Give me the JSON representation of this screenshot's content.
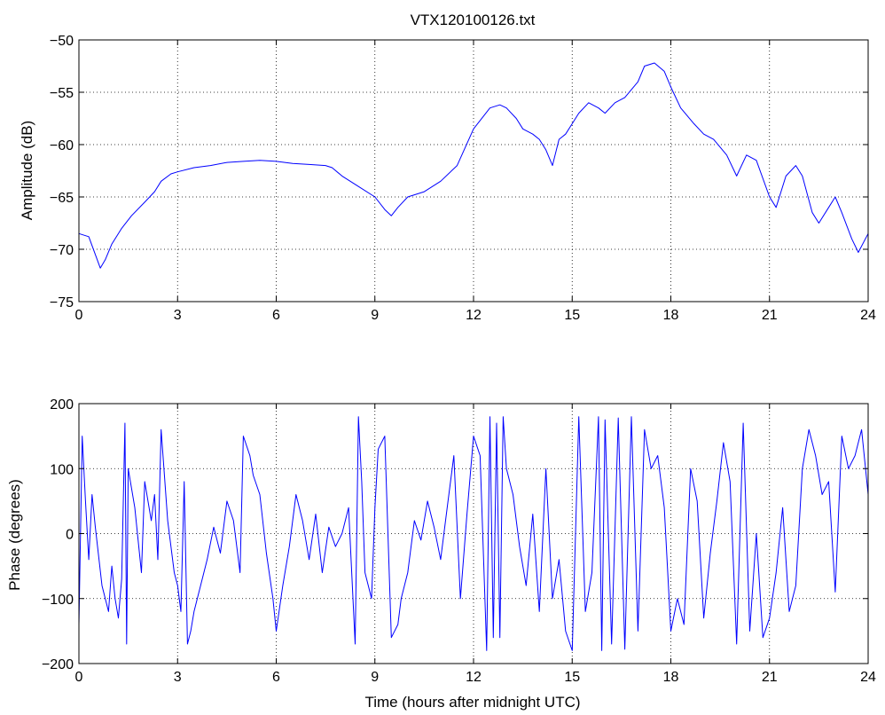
{
  "colors": {
    "series": "#0000ff",
    "axes": "#000000",
    "grid": "#000000",
    "background": "#ffffff"
  },
  "chart_data": [
    {
      "type": "line",
      "title": "VTX120100126.txt",
      "xlabel": "",
      "ylabel": "Amplitude (dB)",
      "xlim": [
        0,
        24
      ],
      "ylim": [
        -75,
        -50
      ],
      "grid": true,
      "xticks": [
        "0",
        "3",
        "6",
        "9",
        "12",
        "15",
        "18",
        "21",
        "24"
      ],
      "yticks": [
        "-75",
        "-70",
        "-65",
        "-60",
        "-55",
        "-50"
      ],
      "series": [
        {
          "x": [
            0,
            0.3,
            0.5,
            0.65,
            0.8,
            1.0,
            1.3,
            1.6,
            2.0,
            2.3,
            2.5,
            2.8,
            3.0,
            3.5,
            4.0,
            4.5,
            5.0,
            5.5,
            6.0,
            6.5,
            7.0,
            7.5,
            7.7,
            8.0,
            8.5,
            9.0,
            9.3,
            9.5,
            9.7,
            10.0,
            10.5,
            11.0,
            11.5,
            12.0,
            12.5,
            12.8,
            13.0,
            13.3,
            13.5,
            13.8,
            14.0,
            14.2,
            14.4,
            14.6,
            14.8,
            15.0,
            15.2,
            15.5,
            15.8,
            16.0,
            16.3,
            16.6,
            17.0,
            17.2,
            17.5,
            17.8,
            18.0,
            18.3,
            18.7,
            19.0,
            19.3,
            19.7,
            20.0,
            20.3,
            20.6,
            21.0,
            21.2,
            21.5,
            21.8,
            22.0,
            22.3,
            22.5,
            22.8,
            23.0,
            23.2,
            23.5,
            23.7,
            24.0
          ],
          "values": [
            -68.5,
            -68.8,
            -70.5,
            -71.8,
            -71.0,
            -69.5,
            -68.0,
            -66.8,
            -65.5,
            -64.5,
            -63.5,
            -62.8,
            -62.6,
            -62.2,
            -62.0,
            -61.7,
            -61.6,
            -61.5,
            -61.6,
            -61.8,
            -61.9,
            -62.0,
            -62.2,
            -63.0,
            -64.0,
            -65.0,
            -66.2,
            -66.8,
            -66.0,
            -65.0,
            -64.5,
            -63.5,
            -62.0,
            -58.5,
            -56.5,
            -56.2,
            -56.5,
            -57.5,
            -58.5,
            -59.0,
            -59.5,
            -60.5,
            -62.0,
            -59.5,
            -59.0,
            -58.0,
            -57.0,
            -56.0,
            -56.5,
            -57.0,
            -56.0,
            -55.5,
            -54.0,
            -52.5,
            -52.2,
            -53.0,
            -54.5,
            -56.5,
            -58.0,
            -59.0,
            -59.5,
            -61.0,
            -63.0,
            -61.0,
            -61.5,
            -65.0,
            -66.0,
            -63.0,
            -62.0,
            -63.0,
            -66.5,
            -67.5,
            -66.0,
            -65.0,
            -66.5,
            -69.0,
            -70.3,
            -68.5
          ]
        }
      ]
    },
    {
      "type": "line",
      "title": "",
      "xlabel": "Time (hours after midnight UTC)",
      "ylabel": "Phase (degrees)",
      "xlim": [
        0,
        24
      ],
      "ylim": [
        -200,
        200
      ],
      "grid": true,
      "xticks": [
        "0",
        "3",
        "6",
        "9",
        "12",
        "15",
        "18",
        "21",
        "24"
      ],
      "yticks": [
        "-200",
        "-100",
        "0",
        "100",
        "200"
      ],
      "series": [
        {
          "x": [
            0,
            0.1,
            0.2,
            0.3,
            0.4,
            0.5,
            0.7,
            0.9,
            1.0,
            1.1,
            1.2,
            1.3,
            1.4,
            1.45,
            1.5,
            1.7,
            1.9,
            2.0,
            2.2,
            2.3,
            2.4,
            2.5,
            2.7,
            2.9,
            3.0,
            3.1,
            3.2,
            3.3,
            3.4,
            3.5,
            3.7,
            3.9,
            4.1,
            4.3,
            4.5,
            4.7,
            4.9,
            5.0,
            5.2,
            5.3,
            5.5,
            5.7,
            5.9,
            6.0,
            6.2,
            6.4,
            6.6,
            6.8,
            7.0,
            7.2,
            7.4,
            7.6,
            7.8,
            8.0,
            8.2,
            8.4,
            8.5,
            8.6,
            8.7,
            8.9,
            9.0,
            9.1,
            9.3,
            9.5,
            9.7,
            9.8,
            10.0,
            10.2,
            10.4,
            10.6,
            10.8,
            11.0,
            11.2,
            11.4,
            11.6,
            11.8,
            12.0,
            12.2,
            12.4,
            12.5,
            12.6,
            12.7,
            12.8,
            12.9,
            13.0,
            13.2,
            13.4,
            13.6,
            13.8,
            14.0,
            14.2,
            14.4,
            14.6,
            14.8,
            15.0,
            15.2,
            15.4,
            15.6,
            15.8,
            15.9,
            16.0,
            16.2,
            16.4,
            16.6,
            16.8,
            17.0,
            17.2,
            17.4,
            17.6,
            17.8,
            18.0,
            18.2,
            18.4,
            18.6,
            18.8,
            19.0,
            19.2,
            19.4,
            19.6,
            19.8,
            20.0,
            20.2,
            20.4,
            20.6,
            20.8,
            21.0,
            21.2,
            21.4,
            21.6,
            21.8,
            22.0,
            22.2,
            22.4,
            22.6,
            22.8,
            23.0,
            23.2,
            23.4,
            23.6,
            23.8,
            24.0
          ],
          "values": [
            -140,
            150,
            50,
            -40,
            60,
            10,
            -80,
            -120,
            -50,
            -100,
            -130,
            -70,
            170,
            -170,
            100,
            40,
            -60,
            80,
            20,
            60,
            -40,
            160,
            20,
            -60,
            -80,
            -120,
            80,
            -170,
            -150,
            -120,
            -80,
            -40,
            10,
            -30,
            50,
            20,
            -60,
            150,
            120,
            90,
            60,
            -30,
            -100,
            -150,
            -80,
            -20,
            60,
            20,
            -40,
            30,
            -60,
            10,
            -20,
            0,
            40,
            -170,
            180,
            80,
            -60,
            -100,
            40,
            130,
            150,
            -160,
            -140,
            -100,
            -60,
            20,
            -10,
            50,
            10,
            -40,
            40,
            120,
            -100,
            30,
            150,
            120,
            -180,
            180,
            -160,
            170,
            -160,
            180,
            100,
            60,
            -20,
            -80,
            30,
            -120,
            100,
            -100,
            -40,
            -150,
            -180,
            180,
            -120,
            -60,
            180,
            -180,
            175,
            -170,
            178,
            -178,
            180,
            -150,
            160,
            100,
            120,
            40,
            -150,
            -100,
            -140,
            100,
            50,
            -130,
            -30,
            50,
            140,
            80,
            -170,
            170,
            -150,
            0,
            -160,
            -130,
            -60,
            40,
            -120,
            -80,
            100,
            160,
            120,
            60,
            80,
            -90,
            150,
            100,
            120,
            160,
            60
          ]
        }
      ]
    }
  ]
}
